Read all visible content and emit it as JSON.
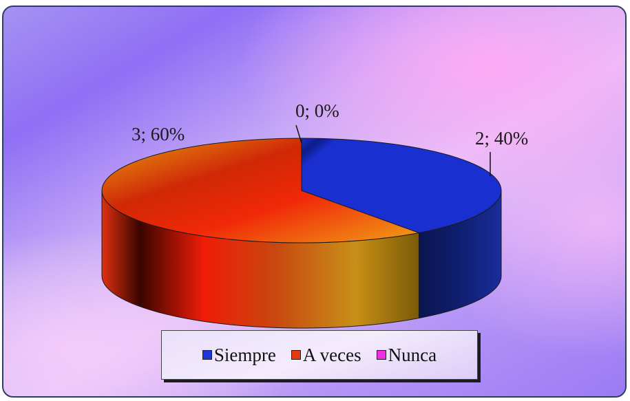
{
  "chart_data": {
    "type": "pie",
    "style": "3d",
    "categories": [
      "Siempre",
      "A veces",
      "Nunca"
    ],
    "values": [
      2,
      3,
      0
    ],
    "percentages": [
      40,
      60,
      0
    ],
    "data_labels": [
      "2; 40%",
      "3; 60%",
      "0; 0%"
    ],
    "colors": [
      "#1e36d8",
      "#e53a10",
      "#ee2ee0"
    ],
    "legend_position": "bottom"
  },
  "legend": {
    "items": [
      {
        "label": "Siempre",
        "color": "#1e36d8"
      },
      {
        "label": "A veces",
        "color": "#e53a10"
      },
      {
        "label": "Nunca",
        "color": "#ee2ee0"
      }
    ]
  }
}
